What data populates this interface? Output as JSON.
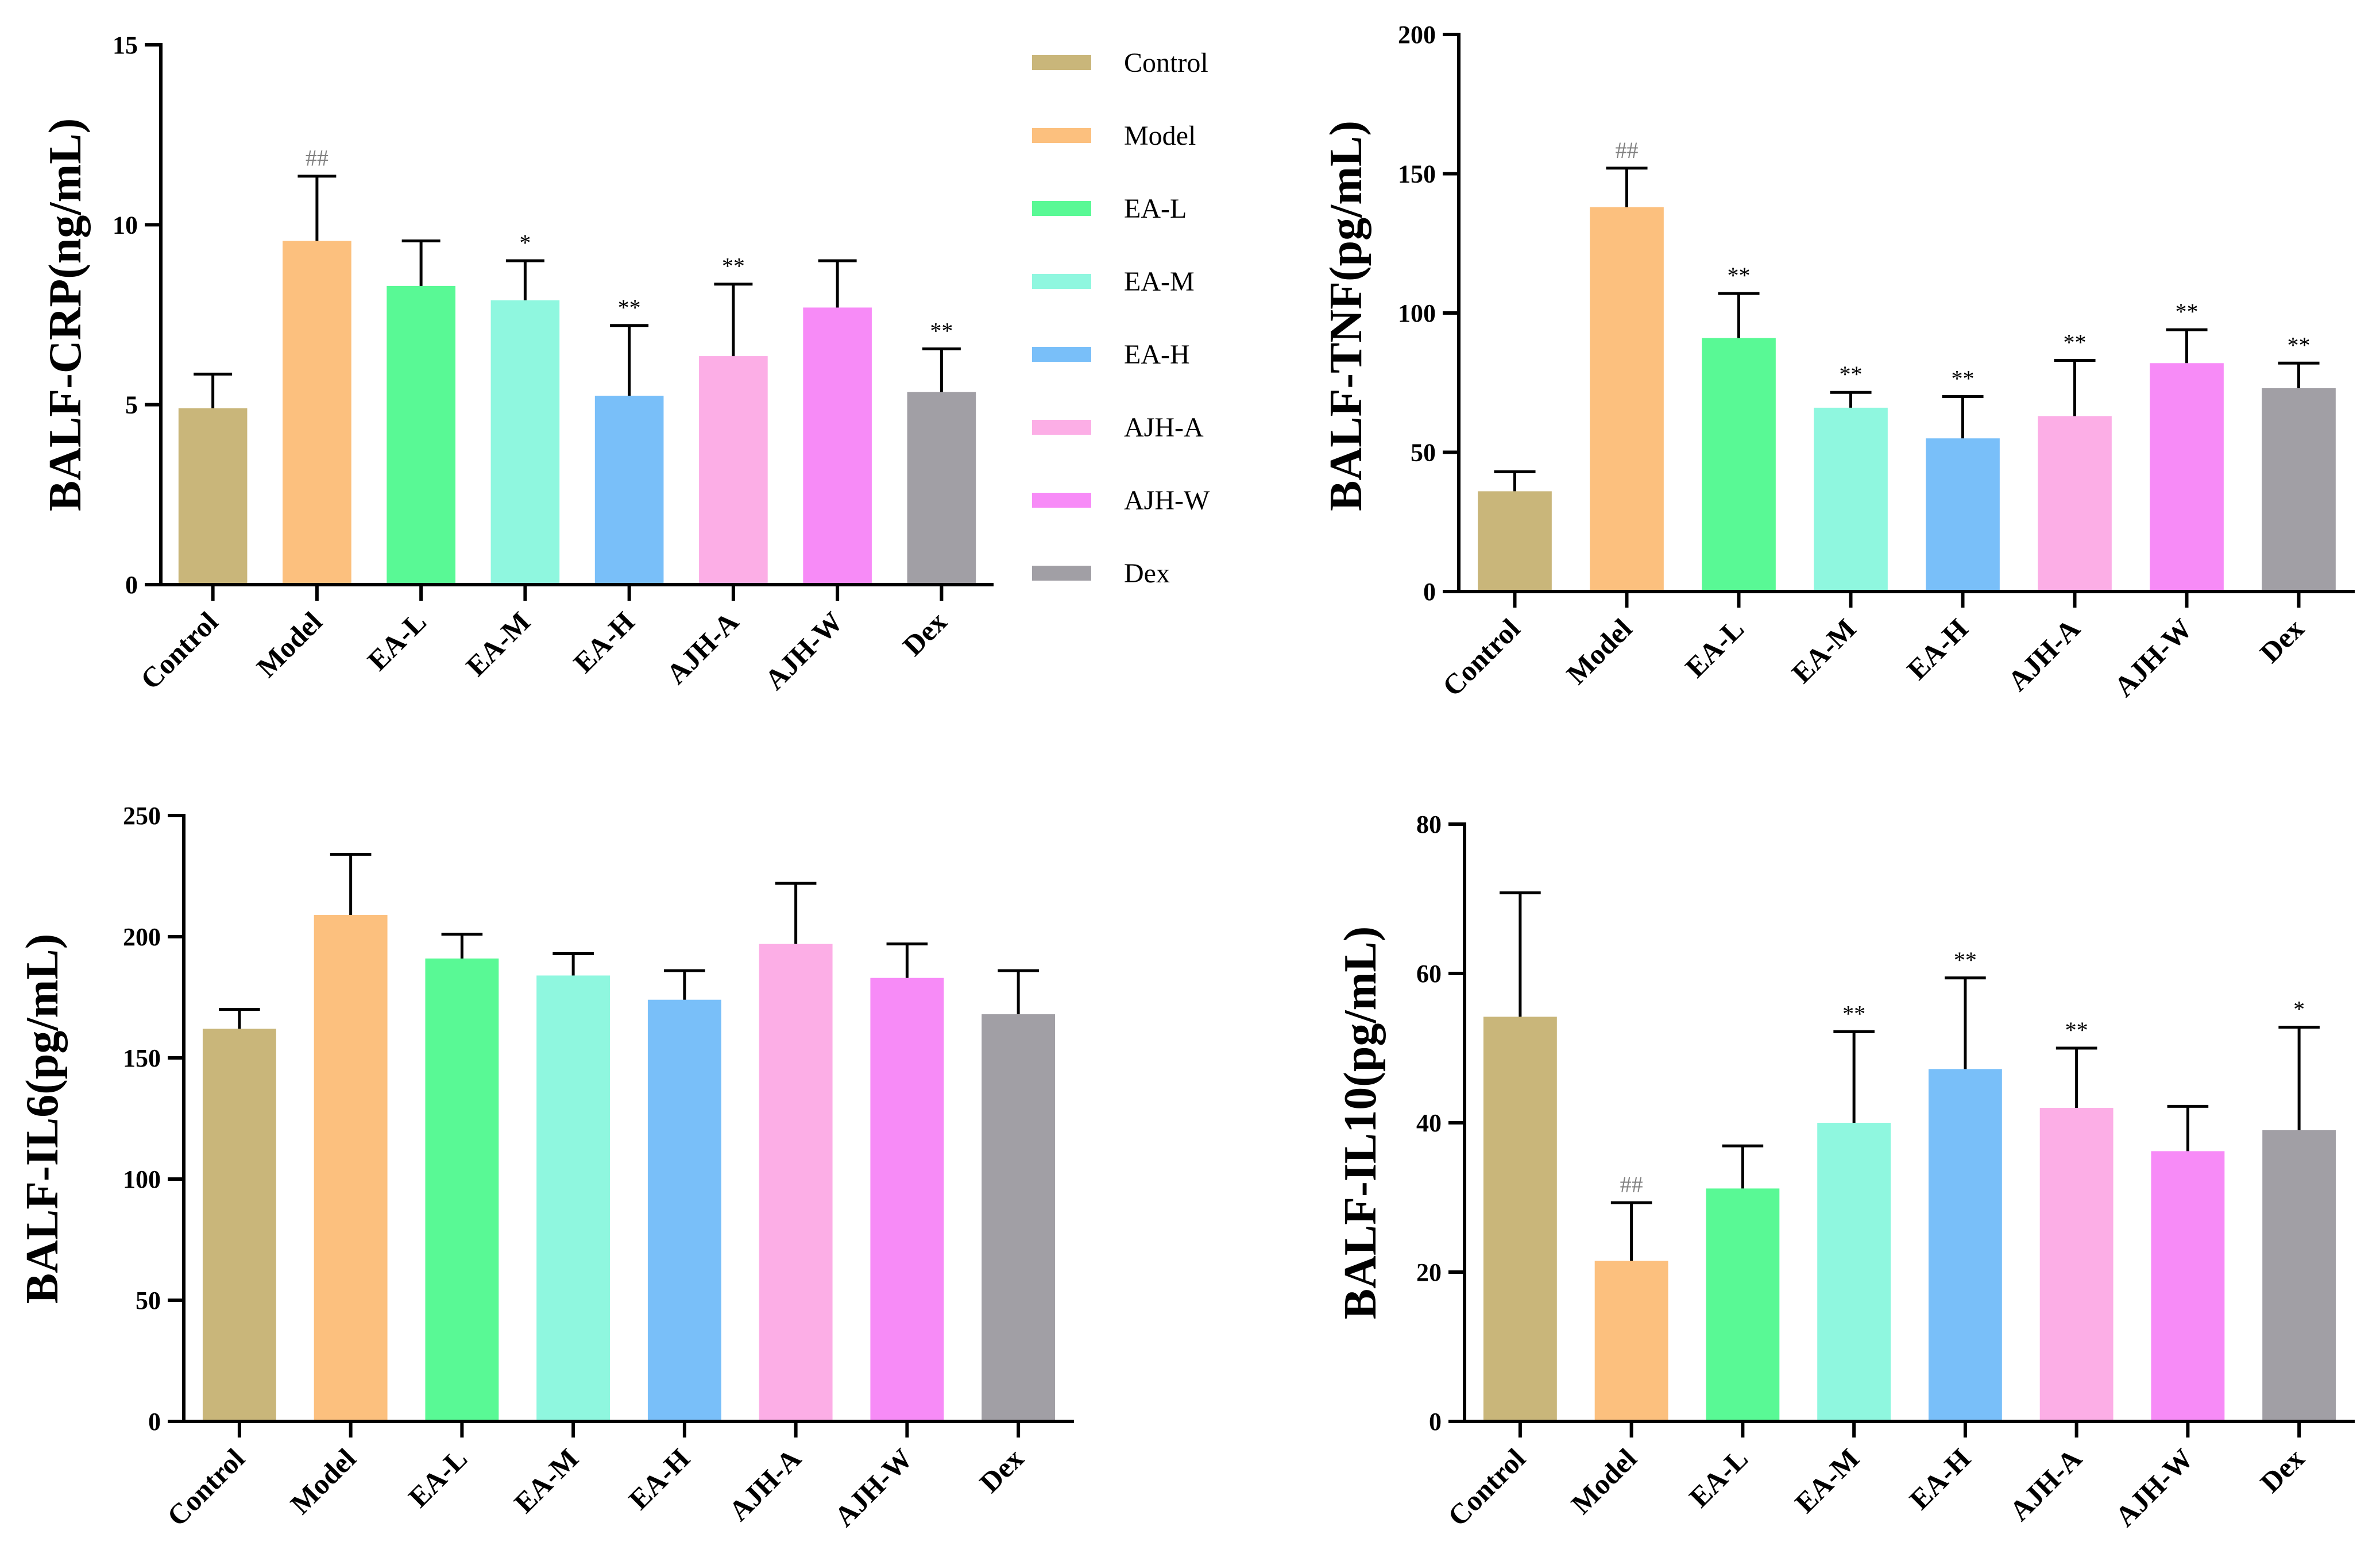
{
  "chart_data": [
    {
      "type": "bar",
      "ylabel": "BALF-CRP(ng/mL)",
      "categories": [
        "Control",
        "Model",
        "EA-L",
        "EA-M",
        "EA-H",
        "AJH-A",
        "AJH-W",
        "Dex"
      ],
      "values": [
        4.9,
        9.55,
        8.3,
        7.9,
        5.25,
        6.35,
        7.7,
        5.35
      ],
      "errors": [
        0.95,
        1.8,
        1.25,
        1.1,
        1.95,
        2.0,
        1.3,
        1.2
      ],
      "annotations": [
        "",
        "##",
        "",
        "*",
        "**",
        "**",
        "",
        "**"
      ],
      "ylim": [
        0,
        15
      ],
      "yticks": [
        0,
        5,
        10,
        15
      ]
    },
    {
      "type": "bar",
      "ylabel": "BALF-TNF(pg/mL)",
      "categories": [
        "Control",
        "Model",
        "EA-L",
        "EA-M",
        "EA-H",
        "AJH-A",
        "AJH-W",
        "Dex"
      ],
      "values": [
        36,
        138,
        91,
        66,
        55,
        63,
        82,
        73
      ],
      "errors": [
        7,
        14,
        16,
        5.5,
        15,
        20,
        12,
        9
      ],
      "annotations": [
        "",
        "##",
        "**",
        "**",
        "**",
        "**",
        "**",
        "**"
      ],
      "ylim": [
        0,
        200
      ],
      "yticks": [
        0,
        50,
        100,
        150,
        200
      ]
    },
    {
      "type": "bar",
      "ylabel": "BALF-IL6(pg/mL)",
      "categories": [
        "Control",
        "Model",
        "EA-L",
        "EA-M",
        "EA-H",
        "AJH-A",
        "AJH-W",
        "Dex"
      ],
      "values": [
        162,
        209,
        191,
        184,
        174,
        197,
        183,
        168
      ],
      "errors": [
        8,
        25,
        10,
        9,
        12,
        25,
        14,
        18
      ],
      "annotations": [
        "",
        "",
        "",
        "",
        "",
        "",
        "",
        ""
      ],
      "ylim": [
        0,
        250
      ],
      "yticks": [
        0,
        50,
        100,
        150,
        200,
        250
      ]
    },
    {
      "type": "bar",
      "ylabel": "BALF-IL10(pg/mL)",
      "categories": [
        "Control",
        "Model",
        "EA-L",
        "EA-M",
        "EA-H",
        "AJH-A",
        "AJH-W",
        "Dex"
      ],
      "values": [
        54.2,
        21.5,
        31.2,
        40.0,
        47.2,
        42.0,
        36.2,
        39.0
      ],
      "errors": [
        16.6,
        7.8,
        5.7,
        12.2,
        12.2,
        8.0,
        6.0,
        13.8
      ],
      "annotations": [
        "",
        "##",
        "",
        "**",
        "**",
        "**",
        "",
        "*"
      ],
      "ylim": [
        0,
        80
      ],
      "yticks": [
        0,
        20,
        40,
        60,
        80
      ]
    }
  ],
  "legend": {
    "position": "top-center",
    "entries": [
      {
        "label": "Control",
        "color": "#c9b67a"
      },
      {
        "label": "Model",
        "color": "#fcc07e"
      },
      {
        "label": "EA-L",
        "color": "#59f995"
      },
      {
        "label": "EA-M",
        "color": "#8ff7df"
      },
      {
        "label": "EA-H",
        "color": "#79bff9"
      },
      {
        "label": "AJH-A",
        "color": "#fcaee6"
      },
      {
        "label": "AJH-W",
        "color": "#f78bf7"
      },
      {
        "label": "Dex",
        "color": "#a19fa5"
      }
    ]
  }
}
